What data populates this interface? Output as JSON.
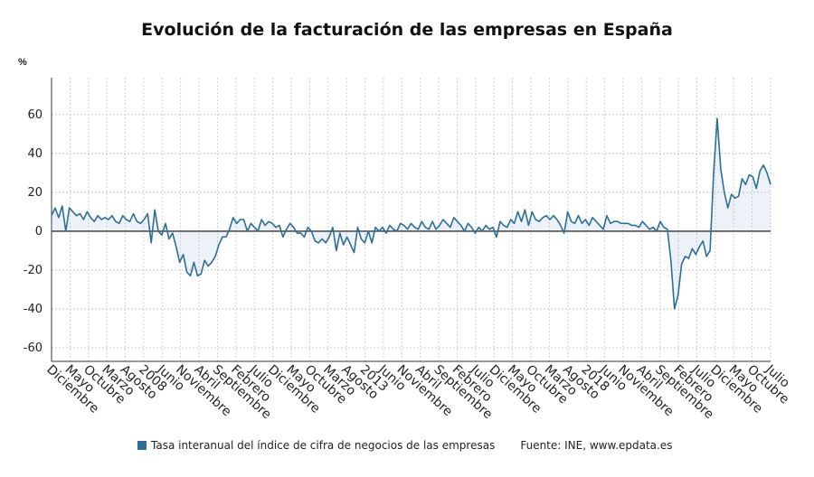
{
  "chart_data": {
    "type": "line",
    "title": "Evolución de la facturación de las empresas en España",
    "ylabel": "%",
    "ylim": [
      -67,
      79
    ],
    "yticks": [
      60,
      40,
      20,
      0,
      -20,
      -40,
      -60
    ],
    "grid": true,
    "legend_position": "bottom",
    "x_tick_labels": [
      "Diciembre",
      "Mayo",
      "Octubre",
      "Marzo",
      "Agosto",
      "2008",
      "Junio",
      "Noviembre",
      "Abril",
      "Septiembre",
      "Febrero",
      "Julio",
      "Diciembre",
      "Mayo",
      "Octubre",
      "Marzo",
      "Agosto",
      "2013",
      "Junio",
      "Noviembre",
      "Abril",
      "Septiembre",
      "Febrero",
      "Julio",
      "Diciembre",
      "Mayo",
      "Octubre",
      "Marzo",
      "Agosto",
      "2018",
      "Junio",
      "Noviembre",
      "Abril",
      "Septiembre",
      "Febrero",
      "Julio",
      "Diciembre",
      "Mayo",
      "Octubre",
      "Julio"
    ],
    "series": [
      {
        "name": "Tasa interanual del índice de cifra de negocios de las empresas",
        "color": "#2e6f95",
        "values": [
          8,
          12,
          7,
          13,
          0,
          12,
          10,
          8,
          9,
          6,
          10,
          7,
          5,
          8,
          6,
          7,
          6,
          8,
          5,
          4,
          8,
          6,
          5,
          9,
          5,
          4,
          6,
          9,
          -6,
          11,
          0,
          -2,
          4,
          -4,
          -1,
          -8,
          -16,
          -12,
          -21,
          -23,
          -16,
          -23,
          -22,
          -15,
          -18,
          -16,
          -13,
          -7,
          -3,
          -3,
          1,
          7,
          4,
          6,
          6,
          0,
          4,
          2,
          0,
          6,
          3,
          5,
          4,
          2,
          3,
          -3,
          1,
          4,
          2,
          -1,
          -1,
          -3,
          2,
          0,
          -5,
          -6,
          -4,
          -6,
          -3,
          2,
          -10,
          -1,
          -7,
          -3,
          -7,
          -11,
          2,
          -4,
          -6,
          0,
          -6,
          2,
          0,
          2,
          -1,
          3,
          1,
          0,
          4,
          3,
          1,
          4,
          2,
          1,
          5,
          2,
          1,
          5,
          1,
          3,
          6,
          4,
          2,
          7,
          5,
          3,
          0,
          4,
          2,
          -1,
          2,
          0,
          3,
          1,
          2,
          -3,
          5,
          3,
          2,
          6,
          4,
          10,
          5,
          11,
          3,
          10,
          6,
          5,
          7,
          8,
          6,
          8,
          6,
          3,
          -1,
          10,
          5,
          4,
          8,
          4,
          6,
          3,
          7,
          5,
          3,
          1,
          8,
          4,
          5,
          5,
          4,
          4,
          4,
          3,
          3,
          2,
          5,
          3,
          1,
          2,
          0,
          5,
          2,
          1,
          -15,
          -40,
          -33,
          -17,
          -13,
          -14,
          -9,
          -12,
          -8,
          -5,
          -13,
          -10,
          30,
          58,
          32,
          20,
          12,
          19,
          17,
          18,
          27,
          24,
          29,
          28,
          22,
          31,
          34,
          30,
          24
        ]
      }
    ],
    "source": "Fuente: INE, www.epdata.es"
  }
}
